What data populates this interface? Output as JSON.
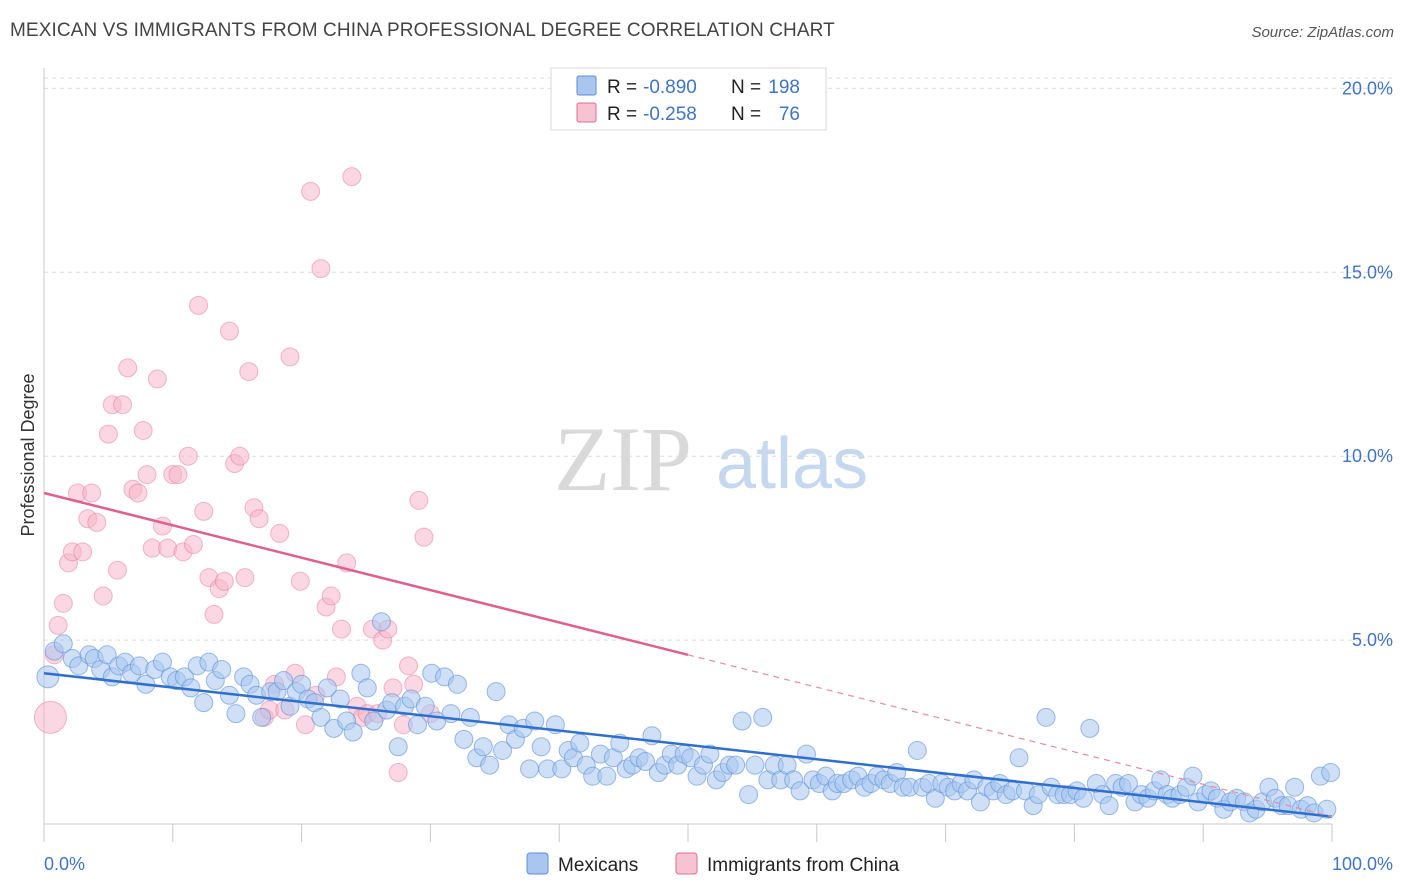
{
  "header": {
    "title": "MEXICAN VS IMMIGRANTS FROM CHINA PROFESSIONAL DEGREE CORRELATION CHART",
    "source": "Source: ZipAtlas.com"
  },
  "watermark": {
    "zip": "ZIP",
    "atlas": "atlas"
  },
  "colors": {
    "blue": "#5b8fd9",
    "blue_fill": "#a8c6ef",
    "pink": "#e56b93",
    "pink_fill": "#f5b7cb",
    "grid": "#dcdcdc",
    "tick_text": "#3f74c8"
  },
  "legend": {
    "rows": [
      {
        "r_label": "R =",
        "r_value": "-0.890",
        "n_label": "N =",
        "n_value": "198"
      },
      {
        "r_label": "R =",
        "r_value": "-0.258",
        "n_label": "N =",
        "n_value": "76"
      }
    ]
  },
  "bottom_legend": {
    "items": [
      "Mexicans",
      "Immigrants from China"
    ]
  },
  "chart_data": {
    "type": "scatter",
    "title": "MEXICAN VS IMMIGRANTS FROM CHINA PROFESSIONAL DEGREE CORRELATION CHART",
    "xlabel": "",
    "ylabel": "Professional Degree",
    "xlim": [
      0,
      100
    ],
    "ylim": [
      0,
      20.5
    ],
    "x_tick_labels": [
      "0.0%",
      "100.0%"
    ],
    "y_ticks": [
      5,
      10,
      15,
      20
    ],
    "y_tick_labels": [
      "5.0%",
      "10.0%",
      "15.0%",
      "20.0%"
    ],
    "grid": "horizontal dashed",
    "legend_position": "top-center",
    "series": [
      {
        "name": "Mexicans",
        "color": "#5b8fd9",
        "r": -0.89,
        "n": 198,
        "trend": {
          "x": [
            0,
            100
          ],
          "y": [
            4.1,
            0.2
          ]
        },
        "points": [
          [
            0.3,
            4.0
          ],
          [
            0.8,
            4.7
          ],
          [
            1.5,
            4.9
          ],
          [
            2.2,
            4.5
          ],
          [
            2.7,
            4.3
          ],
          [
            3.5,
            4.6
          ],
          [
            3.9,
            4.5
          ],
          [
            4.4,
            4.2
          ],
          [
            4.9,
            4.6
          ],
          [
            5.3,
            4.0
          ],
          [
            5.8,
            4.3
          ],
          [
            6.3,
            4.4
          ],
          [
            6.8,
            4.1
          ],
          [
            7.4,
            4.3
          ],
          [
            7.9,
            3.8
          ],
          [
            8.6,
            4.2
          ],
          [
            9.2,
            4.4
          ],
          [
            9.8,
            4.0
          ],
          [
            10.3,
            3.9
          ],
          [
            10.9,
            4.0
          ],
          [
            11.4,
            3.7
          ],
          [
            11.9,
            4.3
          ],
          [
            12.4,
            3.3
          ],
          [
            12.8,
            4.4
          ],
          [
            13.3,
            3.9
          ],
          [
            13.8,
            4.2
          ],
          [
            14.4,
            3.5
          ],
          [
            14.9,
            3.0
          ],
          [
            15.5,
            4.0
          ],
          [
            16.0,
            3.8
          ],
          [
            16.5,
            3.5
          ],
          [
            16.9,
            2.9
          ],
          [
            17.6,
            3.6
          ],
          [
            18.1,
            3.6
          ],
          [
            18.6,
            3.9
          ],
          [
            19.1,
            3.2
          ],
          [
            19.6,
            3.6
          ],
          [
            20.0,
            3.8
          ],
          [
            20.5,
            3.4
          ],
          [
            21.0,
            3.3
          ],
          [
            21.5,
            2.9
          ],
          [
            22.0,
            3.7
          ],
          [
            22.5,
            2.6
          ],
          [
            23.0,
            3.4
          ],
          [
            23.5,
            2.8
          ],
          [
            24.0,
            2.5
          ],
          [
            24.6,
            4.1
          ],
          [
            25.1,
            3.7
          ],
          [
            25.6,
            2.8
          ],
          [
            26.2,
            5.5
          ],
          [
            26.6,
            3.1
          ],
          [
            27.0,
            3.3
          ],
          [
            27.5,
            2.1
          ],
          [
            28.0,
            3.2
          ],
          [
            28.5,
            3.4
          ],
          [
            29.0,
            2.7
          ],
          [
            29.6,
            3.2
          ],
          [
            30.1,
            4.1
          ],
          [
            30.5,
            2.8
          ],
          [
            31.1,
            4.0
          ],
          [
            31.6,
            3.0
          ],
          [
            32.1,
            3.8
          ],
          [
            32.6,
            2.3
          ],
          [
            33.1,
            2.9
          ],
          [
            33.6,
            1.8
          ],
          [
            34.1,
            2.1
          ],
          [
            34.6,
            1.6
          ],
          [
            35.1,
            3.6
          ],
          [
            35.6,
            2.0
          ],
          [
            36.1,
            2.7
          ],
          [
            36.6,
            2.3
          ],
          [
            37.2,
            2.6
          ],
          [
            37.7,
            1.5
          ],
          [
            38.1,
            2.8
          ],
          [
            38.6,
            2.1
          ],
          [
            39.1,
            1.5
          ],
          [
            39.7,
            2.7
          ],
          [
            40.2,
            1.5
          ],
          [
            40.7,
            2.0
          ],
          [
            41.1,
            1.8
          ],
          [
            41.6,
            2.2
          ],
          [
            42.1,
            1.6
          ],
          [
            42.6,
            1.3
          ],
          [
            43.2,
            1.9
          ],
          [
            43.7,
            1.3
          ],
          [
            44.2,
            1.8
          ],
          [
            44.7,
            2.2
          ],
          [
            45.2,
            1.5
          ],
          [
            45.7,
            1.6
          ],
          [
            46.2,
            1.8
          ],
          [
            46.7,
            1.7
          ],
          [
            47.2,
            2.4
          ],
          [
            47.7,
            1.4
          ],
          [
            48.2,
            1.6
          ],
          [
            48.7,
            1.9
          ],
          [
            49.2,
            1.6
          ],
          [
            49.7,
            1.9
          ],
          [
            50.2,
            1.8
          ],
          [
            50.7,
            1.3
          ],
          [
            51.2,
            1.6
          ],
          [
            51.7,
            1.9
          ],
          [
            52.2,
            1.2
          ],
          [
            52.7,
            1.4
          ],
          [
            53.2,
            1.6
          ],
          [
            53.7,
            1.6
          ],
          [
            54.2,
            2.8
          ],
          [
            54.7,
            0.8
          ],
          [
            55.2,
            1.6
          ],
          [
            55.8,
            2.9
          ],
          [
            56.2,
            1.2
          ],
          [
            56.7,
            1.6
          ],
          [
            57.2,
            1.2
          ],
          [
            57.7,
            1.6
          ],
          [
            58.2,
            1.2
          ],
          [
            58.7,
            0.9
          ],
          [
            59.2,
            1.9
          ],
          [
            59.7,
            1.2
          ],
          [
            60.2,
            1.1
          ],
          [
            60.7,
            1.3
          ],
          [
            61.2,
            0.9
          ],
          [
            61.6,
            1.1
          ],
          [
            62.1,
            1.1
          ],
          [
            62.7,
            1.2
          ],
          [
            63.2,
            1.3
          ],
          [
            63.7,
            1.0
          ],
          [
            64.2,
            1.1
          ],
          [
            64.7,
            1.3
          ],
          [
            65.2,
            1.2
          ],
          [
            65.7,
            1.1
          ],
          [
            66.2,
            1.4
          ],
          [
            66.7,
            1.0
          ],
          [
            67.2,
            1.0
          ],
          [
            67.8,
            2.0
          ],
          [
            68.2,
            1.0
          ],
          [
            68.7,
            1.1
          ],
          [
            69.2,
            0.7
          ],
          [
            69.7,
            1.1
          ],
          [
            70.2,
            1.0
          ],
          [
            70.7,
            0.9
          ],
          [
            71.2,
            1.1
          ],
          [
            71.7,
            0.9
          ],
          [
            72.2,
            1.2
          ],
          [
            72.7,
            0.6
          ],
          [
            73.2,
            1.0
          ],
          [
            73.7,
            0.9
          ],
          [
            74.2,
            1.1
          ],
          [
            74.7,
            0.8
          ],
          [
            75.2,
            0.9
          ],
          [
            75.7,
            1.8
          ],
          [
            76.2,
            0.9
          ],
          [
            76.8,
            0.5
          ],
          [
            77.2,
            0.8
          ],
          [
            77.8,
            2.9
          ],
          [
            78.2,
            1.0
          ],
          [
            78.7,
            0.8
          ],
          [
            79.2,
            0.8
          ],
          [
            79.7,
            0.8
          ],
          [
            80.2,
            0.9
          ],
          [
            80.7,
            0.7
          ],
          [
            81.2,
            2.6
          ],
          [
            81.7,
            1.1
          ],
          [
            82.2,
            0.8
          ],
          [
            82.7,
            0.5
          ],
          [
            83.2,
            1.1
          ],
          [
            83.7,
            1.0
          ],
          [
            84.2,
            1.1
          ],
          [
            84.7,
            0.6
          ],
          [
            85.2,
            0.8
          ],
          [
            85.7,
            0.7
          ],
          [
            86.2,
            0.9
          ],
          [
            86.7,
            1.2
          ],
          [
            87.2,
            0.8
          ],
          [
            87.6,
            0.7
          ],
          [
            88.2,
            0.8
          ],
          [
            88.7,
            1.0
          ],
          [
            89.2,
            1.3
          ],
          [
            89.6,
            0.6
          ],
          [
            90.2,
            0.8
          ],
          [
            90.6,
            0.9
          ],
          [
            91.1,
            0.7
          ],
          [
            91.6,
            0.4
          ],
          [
            92.1,
            0.6
          ],
          [
            92.6,
            0.7
          ],
          [
            93.2,
            0.6
          ],
          [
            93.6,
            0.3
          ],
          [
            94.1,
            0.4
          ],
          [
            94.6,
            0.6
          ],
          [
            95.1,
            1.0
          ],
          [
            95.6,
            0.7
          ],
          [
            96.1,
            0.5
          ],
          [
            96.6,
            0.5
          ],
          [
            97.1,
            1.0
          ],
          [
            97.6,
            0.4
          ],
          [
            98.1,
            0.5
          ],
          [
            98.6,
            0.3
          ],
          [
            99.1,
            1.3
          ],
          [
            99.6,
            0.4
          ],
          [
            99.9,
            1.4
          ]
        ]
      },
      {
        "name": "Immigrants from China",
        "color": "#e56b93",
        "r": -0.258,
        "n": 76,
        "trend": {
          "x": [
            0,
            100
          ],
          "y": [
            9.0,
            0.2
          ],
          "solid_to_x": 50
        },
        "points": [
          [
            0.5,
            2.9
          ],
          [
            0.8,
            4.6
          ],
          [
            1.1,
            5.4
          ],
          [
            1.5,
            6.0
          ],
          [
            1.9,
            7.1
          ],
          [
            2.2,
            7.4
          ],
          [
            2.6,
            9.0
          ],
          [
            3.0,
            7.4
          ],
          [
            3.4,
            8.3
          ],
          [
            3.7,
            9.0
          ],
          [
            4.1,
            8.2
          ],
          [
            4.6,
            6.2
          ],
          [
            5.0,
            10.6
          ],
          [
            5.3,
            11.4
          ],
          [
            5.7,
            6.9
          ],
          [
            6.1,
            11.4
          ],
          [
            6.5,
            12.4
          ],
          [
            6.9,
            9.1
          ],
          [
            7.3,
            9.0
          ],
          [
            7.7,
            10.7
          ],
          [
            8.0,
            9.5
          ],
          [
            8.4,
            7.5
          ],
          [
            8.8,
            12.1
          ],
          [
            9.2,
            8.1
          ],
          [
            9.6,
            7.5
          ],
          [
            10.0,
            9.5
          ],
          [
            10.4,
            9.5
          ],
          [
            10.8,
            7.4
          ],
          [
            11.2,
            10.0
          ],
          [
            11.6,
            7.6
          ],
          [
            12.0,
            14.1
          ],
          [
            12.4,
            8.5
          ],
          [
            12.8,
            6.7
          ],
          [
            13.2,
            5.7
          ],
          [
            13.6,
            6.4
          ],
          [
            14.0,
            6.6
          ],
          [
            14.4,
            13.4
          ],
          [
            14.8,
            9.8
          ],
          [
            15.2,
            10.0
          ],
          [
            15.6,
            6.7
          ],
          [
            15.9,
            12.3
          ],
          [
            16.3,
            8.6
          ],
          [
            16.7,
            8.3
          ],
          [
            17.1,
            2.9
          ],
          [
            17.5,
            3.1
          ],
          [
            17.9,
            3.8
          ],
          [
            18.3,
            7.9
          ],
          [
            18.7,
            3.1
          ],
          [
            19.1,
            12.7
          ],
          [
            19.5,
            4.1
          ],
          [
            19.9,
            6.6
          ],
          [
            20.3,
            2.7
          ],
          [
            20.7,
            17.2
          ],
          [
            21.1,
            3.5
          ],
          [
            21.5,
            15.1
          ],
          [
            21.9,
            5.9
          ],
          [
            22.3,
            6.2
          ],
          [
            22.7,
            4.0
          ],
          [
            23.1,
            5.3
          ],
          [
            23.5,
            7.1
          ],
          [
            23.9,
            17.6
          ],
          [
            24.3,
            3.2
          ],
          [
            24.7,
            2.9
          ],
          [
            25.1,
            3.0
          ],
          [
            25.5,
            5.3
          ],
          [
            25.9,
            3.0
          ],
          [
            26.3,
            5.0
          ],
          [
            26.7,
            5.3
          ],
          [
            27.1,
            3.7
          ],
          [
            27.5,
            1.4
          ],
          [
            27.9,
            2.7
          ],
          [
            28.3,
            4.3
          ],
          [
            28.7,
            3.8
          ],
          [
            29.1,
            8.8
          ],
          [
            29.5,
            7.8
          ],
          [
            30.0,
            3.0
          ]
        ]
      }
    ]
  }
}
